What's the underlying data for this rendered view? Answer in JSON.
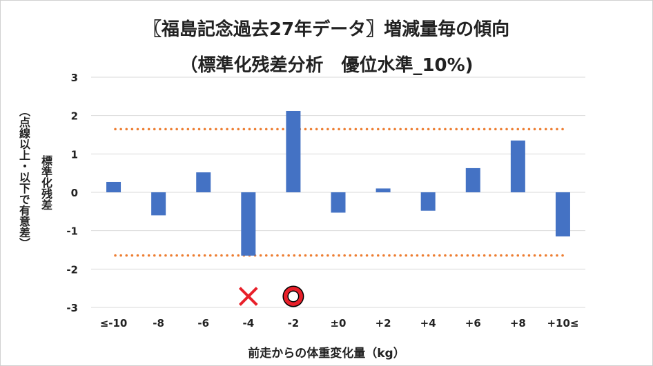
{
  "chart_data": {
    "type": "bar",
    "title": "〖福島記念過去27年データ〗増減量毎の傾向",
    "subtitle": "（標準化残差分析　優位水準_10%)",
    "ylabel": "標準化残差",
    "ylabel_note": "（点線以上・以下で有意差）",
    "xlabel": "前走からの体重変化量（kg）",
    "categories": [
      "≤-10",
      "-8",
      "-6",
      "-4",
      "-2",
      "±0",
      "+2",
      "+4",
      "+6",
      "+8",
      "+10≤"
    ],
    "values": [
      0.27,
      -0.6,
      0.52,
      -1.65,
      2.12,
      -0.53,
      0.1,
      -0.48,
      0.63,
      1.35,
      -1.15
    ],
    "ylim": [
      -3,
      3
    ],
    "yticks": [
      -3,
      -2,
      -1,
      0,
      1,
      2,
      3
    ],
    "thresholds": [
      1.645,
      -1.645
    ],
    "grid": true,
    "bar_color": "#4472c4",
    "gridline_color": "#d9d9d9",
    "threshold_color": "#ed7d31",
    "markers": [
      {
        "category": "-4",
        "symbol": "cross",
        "color": "#e8202a"
      },
      {
        "category": "-2",
        "symbol": "circle",
        "color": "#e8202a"
      }
    ]
  }
}
